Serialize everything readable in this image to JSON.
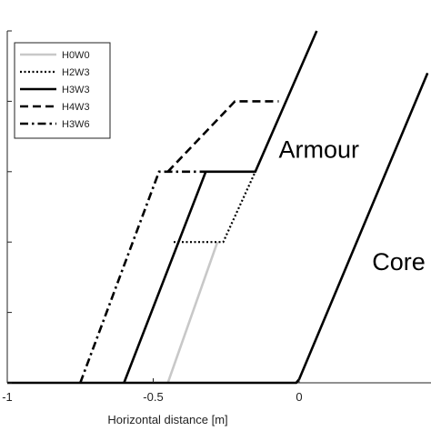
{
  "chart_data": {
    "type": "line",
    "xlabel": "Horizontal distance [m]",
    "ylabel": "",
    "xlim": [
      -1,
      0.45
    ],
    "ylim": [
      0,
      5
    ],
    "xticks": [
      {
        "value": -1,
        "label": "-1"
      },
      {
        "value": -0.5,
        "label": "-0.5"
      },
      {
        "value": 0,
        "label": "0"
      }
    ],
    "yticks": [
      0,
      1,
      2,
      3,
      4,
      5
    ],
    "legend_position": "top-left",
    "series": [
      {
        "name": "H0W0",
        "style": "solid",
        "color": "#c8c8c8",
        "x": [
          -0.45,
          -0.28
        ],
        "y": [
          0,
          2.0
        ]
      },
      {
        "name": "H2W3",
        "style": "dotted",
        "color": "#000000",
        "x": [
          -0.43,
          -0.26,
          -0.15
        ],
        "y": [
          2.0,
          2.0,
          3.0
        ]
      },
      {
        "name": "H3W3",
        "style": "solid",
        "color": "#000000",
        "x": [
          -0.6,
          -0.32,
          -0.15,
          0.06
        ],
        "y": [
          0,
          3.0,
          3.0,
          5.0
        ]
      },
      {
        "name": "H4W3",
        "style": "dashed",
        "color": "#000000",
        "x": [
          -0.45,
          -0.22,
          -0.07
        ],
        "y": [
          3.0,
          4.0,
          4.0
        ]
      },
      {
        "name": "H3W6",
        "style": "dashdot",
        "color": "#000000",
        "x": [
          -0.75,
          -0.48,
          -0.32
        ],
        "y": [
          0,
          3.0,
          3.0
        ]
      },
      {
        "name": "",
        "style": "solid",
        "color": "#000000",
        "x": [
          -1.0,
          -0.01,
          0.0,
          0.44
        ],
        "y": [
          0,
          0,
          0.05,
          4.4
        ]
      }
    ],
    "annotations": [
      {
        "text": "Armour",
        "x": -0.07,
        "y": 3.2
      },
      {
        "text": "Core",
        "x": 0.25,
        "y": 1.6
      }
    ]
  }
}
